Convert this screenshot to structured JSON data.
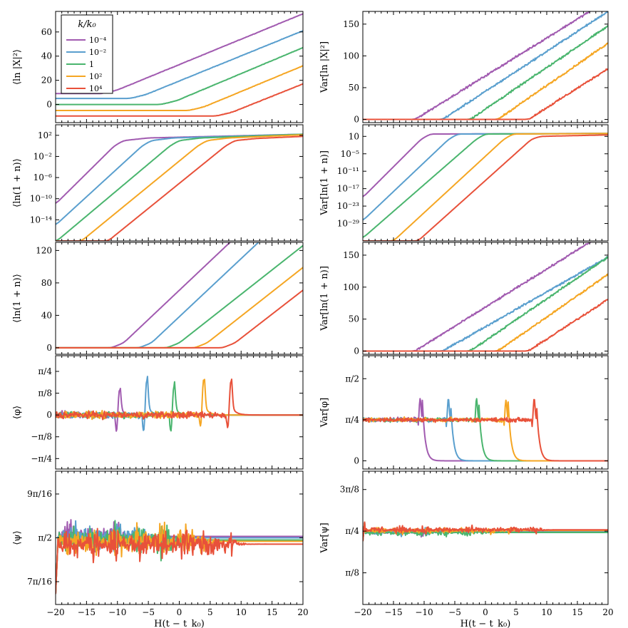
{
  "colors": {
    "1e-4": "#a15bb0",
    "1e-2": "#5a9fce",
    "1": "#4ab56e",
    "1e2": "#f5a623",
    "1e4": "#e8513a"
  },
  "legend": {
    "title": "k/k₀",
    "entries": [
      {
        "key": "1e-4",
        "label": "10⁻⁴"
      },
      {
        "key": "1e-2",
        "label": "10⁻²"
      },
      {
        "key": "1",
        "label": "1"
      },
      {
        "key": "1e2",
        "label": "10²"
      },
      {
        "key": "1e4",
        "label": "10⁴"
      }
    ],
    "placement": "top-left of first panel"
  },
  "xlabel": "H(t − t_k₀)",
  "xlim": [
    -20,
    20
  ],
  "xticks": [
    -20,
    -15,
    -10,
    -5,
    0,
    5,
    10,
    15,
    20
  ],
  "xtick_labels": [
    "−20",
    "−15",
    "−10",
    "−5",
    "0",
    "5",
    "10",
    "15",
    "20"
  ],
  "chart_data": [
    {
      "id": "lnX2-mean",
      "type": "line",
      "ylabel": "⟨ln |X|²⟩",
      "ylim": [
        -15,
        77
      ],
      "yticks": [
        0,
        20,
        40,
        60
      ],
      "ytick_labels": [
        "0",
        "20",
        "40",
        "60"
      ],
      "series": [
        {
          "key": "1e-4",
          "x": [
            -20,
            -12.5,
            -10,
            20
          ],
          "y": [
            9,
            9,
            12,
            75
          ]
        },
        {
          "key": "1e-2",
          "x": [
            -20,
            -8,
            -5.5,
            20
          ],
          "y": [
            5,
            5,
            8,
            61
          ]
        },
        {
          "key": "1",
          "x": [
            -20,
            -3,
            -0.5,
            20
          ],
          "y": [
            0,
            0,
            3,
            47
          ]
        },
        {
          "key": "1e2",
          "x": [
            -20,
            1.5,
            4,
            20
          ],
          "y": [
            -5,
            -5,
            -2,
            32
          ]
        },
        {
          "key": "1e4",
          "x": [
            -20,
            6,
            8.5,
            20
          ],
          "y": [
            -9.5,
            -9.5,
            -6.5,
            17
          ]
        }
      ]
    },
    {
      "id": "ln1n-mean-log",
      "type": "line",
      "ylabel": "⟨ln(1 + n)⟩",
      "yscale": "log",
      "ylim_exponent": [
        -18,
        4
      ],
      "yticks_exponent": [
        2,
        -2,
        -6,
        -10,
        -14
      ],
      "ytick_labels": [
        "10²",
        "10⁻²",
        "10⁻⁶",
        "10⁻¹⁰",
        "10⁻¹⁴"
      ],
      "series": [
        {
          "key": "1e-4",
          "x": [
            -20,
            -10.5,
            -9,
            -5,
            20
          ],
          "y_exponent": [
            -11,
            0,
            1,
            1.5,
            2.2
          ]
        },
        {
          "key": "1e-2",
          "x": [
            -20,
            -6,
            -4.5,
            -1,
            20
          ],
          "y_exponent": [
            -15,
            0,
            1,
            1.5,
            2.2
          ]
        },
        {
          "key": "1",
          "x": [
            -19.8,
            -1.5,
            0,
            3.5,
            20
          ],
          "y_exponent": [
            -18,
            0,
            1,
            1.5,
            2.2
          ]
        },
        {
          "key": "1e2",
          "x": [
            -15.8,
            3,
            4.5,
            8,
            20
          ],
          "y_exponent": [
            -18,
            0,
            1,
            1.5,
            2.1
          ]
        },
        {
          "key": "1e4",
          "x": [
            -11.5,
            7.5,
            9,
            12.5,
            20
          ],
          "y_exponent": [
            -18,
            0,
            1,
            1.4,
            1.8
          ]
        }
      ]
    },
    {
      "id": "var-lnX2",
      "type": "line",
      "ylabel": "Var[ln |X|²]",
      "ylim": [
        -5,
        170
      ],
      "yticks": [
        0,
        50,
        100,
        150
      ],
      "ytick_labels": [
        "0",
        "50",
        "100",
        "150"
      ],
      "series": [
        {
          "key": "1e-4",
          "x": [
            -20,
            -11.5,
            17
          ],
          "y": [
            0,
            0,
            170
          ]
        },
        {
          "key": "1e-2",
          "x": [
            -20,
            -7,
            20
          ],
          "y": [
            0,
            0,
            170
          ]
        },
        {
          "key": "1",
          "x": [
            -20,
            -2.5,
            20
          ],
          "y": [
            0,
            0,
            147
          ]
        },
        {
          "key": "1e2",
          "x": [
            -20,
            2,
            20
          ],
          "y": [
            0,
            0,
            120
          ]
        },
        {
          "key": "1e4",
          "x": [
            -20,
            7,
            20
          ],
          "y": [
            0,
            0,
            80
          ]
        }
      ]
    },
    {
      "id": "var-ln1n-log",
      "type": "line",
      "ylabel": "Var[ln(1 + n)]",
      "yscale": "log",
      "ylim_exponent": [
        -35,
        5
      ],
      "yticks_exponent": [
        1,
        -5,
        -11,
        -17,
        -23,
        -29
      ],
      "ytick_labels": [
        "10",
        "10⁻⁵",
        "10⁻¹¹",
        "10⁻¹⁷",
        "10⁻²³",
        "10⁻²⁹"
      ],
      "series": [
        {
          "key": "1e-4",
          "x": [
            -20,
            -10.5,
            -9,
            20
          ],
          "y_exponent": [
            -20,
            0,
            1.8,
            2
          ]
        },
        {
          "key": "1e-2",
          "x": [
            -20,
            -6,
            -4.5,
            20
          ],
          "y_exponent": [
            -28,
            0,
            1.8,
            2
          ]
        },
        {
          "key": "1",
          "x": [
            -20,
            -1.5,
            0,
            20
          ],
          "y_exponent": [
            -34,
            0,
            1.8,
            2
          ]
        },
        {
          "key": "1e2",
          "x": [
            -15,
            3,
            4.5,
            20
          ],
          "y_exponent": [
            -35,
            0,
            1.8,
            2
          ]
        },
        {
          "key": "1e4",
          "x": [
            -11,
            7.5,
            9,
            20
          ],
          "y_exponent": [
            -35,
            0,
            1,
            1.5
          ]
        }
      ]
    },
    {
      "id": "ln1n-mean-lin",
      "type": "line",
      "ylabel": "⟨ln(1 + n)⟩",
      "ylim": [
        -8,
        130
      ],
      "yticks": [
        0,
        40,
        80,
        120
      ],
      "ytick_labels": [
        "0",
        "40",
        "80",
        "120"
      ],
      "series": [
        {
          "key": "1e-4",
          "x": [
            -20,
            -11,
            -9,
            8.2
          ],
          "y": [
            0,
            0,
            6,
            130
          ]
        },
        {
          "key": "1e-2",
          "x": [
            -20,
            -6.5,
            -4.5,
            12.8
          ],
          "y": [
            0,
            0,
            6,
            130
          ]
        },
        {
          "key": "1",
          "x": [
            -20,
            -2,
            0,
            20
          ],
          "y": [
            0,
            0,
            6,
            126
          ]
        },
        {
          "key": "1e2",
          "x": [
            -20,
            2.5,
            4.5,
            20
          ],
          "y": [
            0,
            0,
            6,
            99
          ]
        },
        {
          "key": "1e4",
          "x": [
            -20,
            7,
            9,
            20
          ],
          "y": [
            0,
            0,
            6,
            71
          ]
        }
      ]
    },
    {
      "id": "var-ln1n-lin",
      "type": "line",
      "ylabel": "Var[ln(1 + n)]",
      "ylim": [
        -5,
        170
      ],
      "yticks": [
        0,
        50,
        100,
        150
      ],
      "ytick_labels": [
        "0",
        "50",
        "100",
        "150"
      ],
      "series": [
        {
          "key": "1e-4",
          "x": [
            -20,
            -11.5,
            17
          ],
          "y": [
            0,
            0,
            170
          ]
        },
        {
          "key": "1e-2",
          "x": [
            -20,
            -7,
            20
          ],
          "y": [
            0,
            0,
            147
          ]
        },
        {
          "key": "1",
          "x": [
            -20,
            -2.5,
            20
          ],
          "y": [
            0,
            0,
            147
          ]
        },
        {
          "key": "1e2",
          "x": [
            -20,
            2,
            20
          ],
          "y": [
            0,
            0,
            120
          ]
        },
        {
          "key": "1e4",
          "x": [
            -20,
            7,
            20
          ],
          "y": [
            0,
            0,
            81
          ]
        }
      ]
    },
    {
      "id": "phi-mean",
      "type": "line",
      "ylabel": "⟨φ⟩",
      "yunit": "pi",
      "ylim": [
        -0.31,
        0.34
      ],
      "yticks": [
        0.25,
        0.125,
        0,
        -0.125,
        -0.25
      ],
      "ytick_labels": [
        "π/4",
        "π/8",
        "0",
        "−π/8",
        "−π/4"
      ],
      "series": [
        {
          "key": "1e-4",
          "center": -9.8,
          "peak": 0.145,
          "dip": -0.1,
          "final": 0
        },
        {
          "key": "1e-2",
          "center": -5.4,
          "peak": 0.2,
          "dip": -0.1,
          "final": 0
        },
        {
          "key": "1",
          "center": -1.0,
          "peak": 0.165,
          "dip": -0.1,
          "final": 0
        },
        {
          "key": "1e2",
          "center": 3.8,
          "peak": 0.205,
          "dip": -0.07,
          "final": 0
        },
        {
          "key": "1e4",
          "center": 8.2,
          "peak": 0.195,
          "dip": -0.08,
          "final": 0
        }
      ]
    },
    {
      "id": "phi-var",
      "type": "line",
      "ylabel": "Var[φ]",
      "yunit": "pi",
      "ylim": [
        -0.05,
        0.64
      ],
      "yticks": [
        0.5,
        0.25,
        0
      ],
      "ytick_labels": [
        "π/2",
        "π/4",
        "0"
      ],
      "series": [
        {
          "key": "1e-4",
          "center": -10.5,
          "plateau": 0.25,
          "peak": 0.38,
          "final": 0
        },
        {
          "key": "1e-2",
          "center": -5.9,
          "plateau": 0.25,
          "peak": 0.38,
          "final": 0
        },
        {
          "key": "1",
          "center": -1.3,
          "plateau": 0.25,
          "peak": 0.38,
          "final": 0
        },
        {
          "key": "1e2",
          "center": 3.5,
          "plateau": 0.25,
          "peak": 0.37,
          "final": 0
        },
        {
          "key": "1e4",
          "center": 8.1,
          "plateau": 0.25,
          "peak": 0.38,
          "final": 0
        }
      ]
    },
    {
      "id": "psi-mean",
      "type": "line",
      "ylabel": "⟨ψ⟩",
      "yunit": "pi",
      "ylim": [
        0.405,
        0.595
      ],
      "yticks": [
        0.5625,
        0.5,
        0.4375
      ],
      "ytick_labels": [
        "9π/16",
        "π/2",
        "7π/16"
      ],
      "series": [
        {
          "key": "1e-4",
          "settle": -9.5,
          "final": 0.502
        },
        {
          "key": "1e-2",
          "settle": -5,
          "final": 0.5
        },
        {
          "key": "1",
          "settle": -0.5,
          "final": 0.497
        },
        {
          "key": "1e2",
          "settle": 4,
          "final": 0.495
        },
        {
          "key": "1e4",
          "settle": 8.5,
          "final": 0.491
        }
      ]
    },
    {
      "id": "psi-var",
      "type": "line",
      "ylabel": "Var[ψ]",
      "yunit": "pi",
      "ylim": [
        0.03,
        0.43
      ],
      "yticks": [
        0.375,
        0.25,
        0.125
      ],
      "ytick_labels": [
        "3π/8",
        "π/4",
        "π/8"
      ],
      "series": [
        {
          "key": "1e-4",
          "settle": -9.5,
          "final": 0.248
        },
        {
          "key": "1e-2",
          "settle": -5,
          "final": 0.248
        },
        {
          "key": "1",
          "settle": -0.5,
          "final": 0.246
        },
        {
          "key": "1e2",
          "settle": 4,
          "final": 0.252
        },
        {
          "key": "1e4",
          "settle": 8.5,
          "final": 0.254
        }
      ]
    }
  ]
}
